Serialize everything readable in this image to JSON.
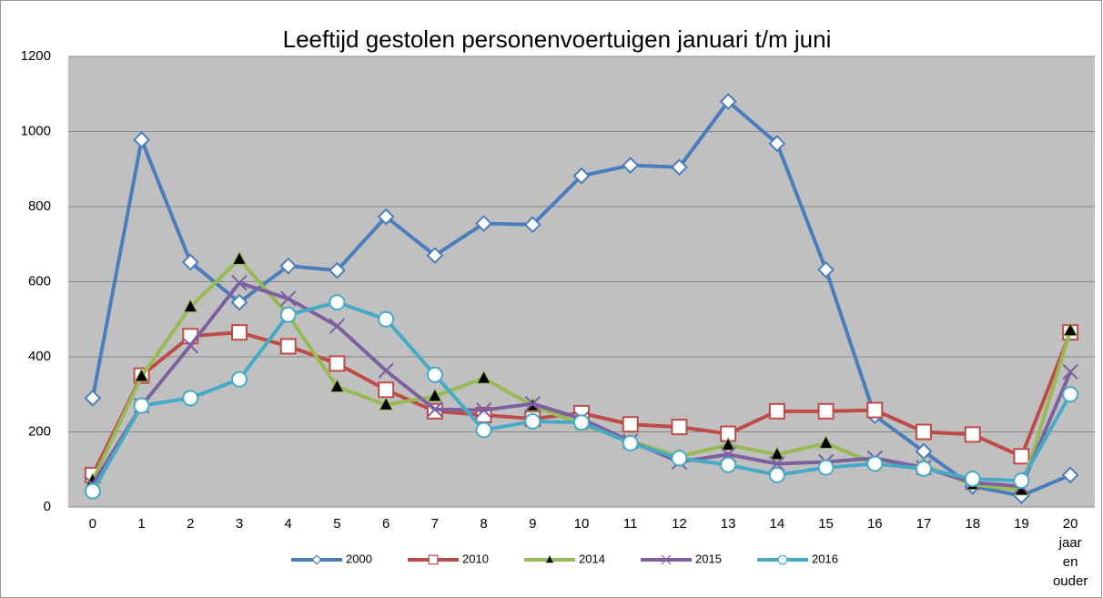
{
  "chart_data": {
    "type": "line",
    "title": "Leeftijd gestolen personenvoertuigen januari t/m juni",
    "categories": [
      "0",
      "1",
      "2",
      "3",
      "4",
      "5",
      "6",
      "7",
      "8",
      "9",
      "10",
      "11",
      "12",
      "13",
      "14",
      "15",
      "16",
      "17",
      "18",
      "19",
      "20 jaar en ouder"
    ],
    "series": [
      {
        "name": "2000",
        "color": "#4a7ebb",
        "marker": "diamond",
        "values": [
          290,
          978,
          652,
          545,
          642,
          630,
          773,
          670,
          755,
          752,
          882,
          910,
          905,
          1080,
          968,
          632,
          243,
          148,
          55,
          30,
          85
        ]
      },
      {
        "name": "2010",
        "color": "#be4b48",
        "marker": "square",
        "values": [
          85,
          350,
          455,
          465,
          428,
          382,
          312,
          255,
          245,
          235,
          250,
          220,
          213,
          195,
          255,
          255,
          258,
          200,
          193,
          135,
          465
        ]
      },
      {
        "name": "2014",
        "color": "#98b954",
        "marker": "triangle",
        "values": [
          70,
          348,
          533,
          660,
          510,
          320,
          272,
          295,
          343,
          270,
          220,
          175,
          135,
          165,
          140,
          170,
          115,
          110,
          60,
          45,
          470
        ]
      },
      {
        "name": "2015",
        "color": "#7d60a0",
        "marker": "x",
        "values": [
          60,
          270,
          430,
          597,
          555,
          482,
          363,
          260,
          258,
          275,
          235,
          175,
          120,
          140,
          115,
          120,
          130,
          105,
          65,
          55,
          360
        ]
      },
      {
        "name": "2016",
        "color": "#46aac5",
        "marker": "circle",
        "values": [
          42,
          270,
          290,
          340,
          512,
          545,
          500,
          352,
          205,
          228,
          225,
          170,
          130,
          112,
          85,
          105,
          115,
          102,
          75,
          70,
          300
        ]
      }
    ],
    "ylim": [
      0,
      1200
    ],
    "yticks": [
      0,
      200,
      400,
      600,
      800,
      1000,
      1200
    ],
    "grid": true,
    "legend": "bottom"
  }
}
